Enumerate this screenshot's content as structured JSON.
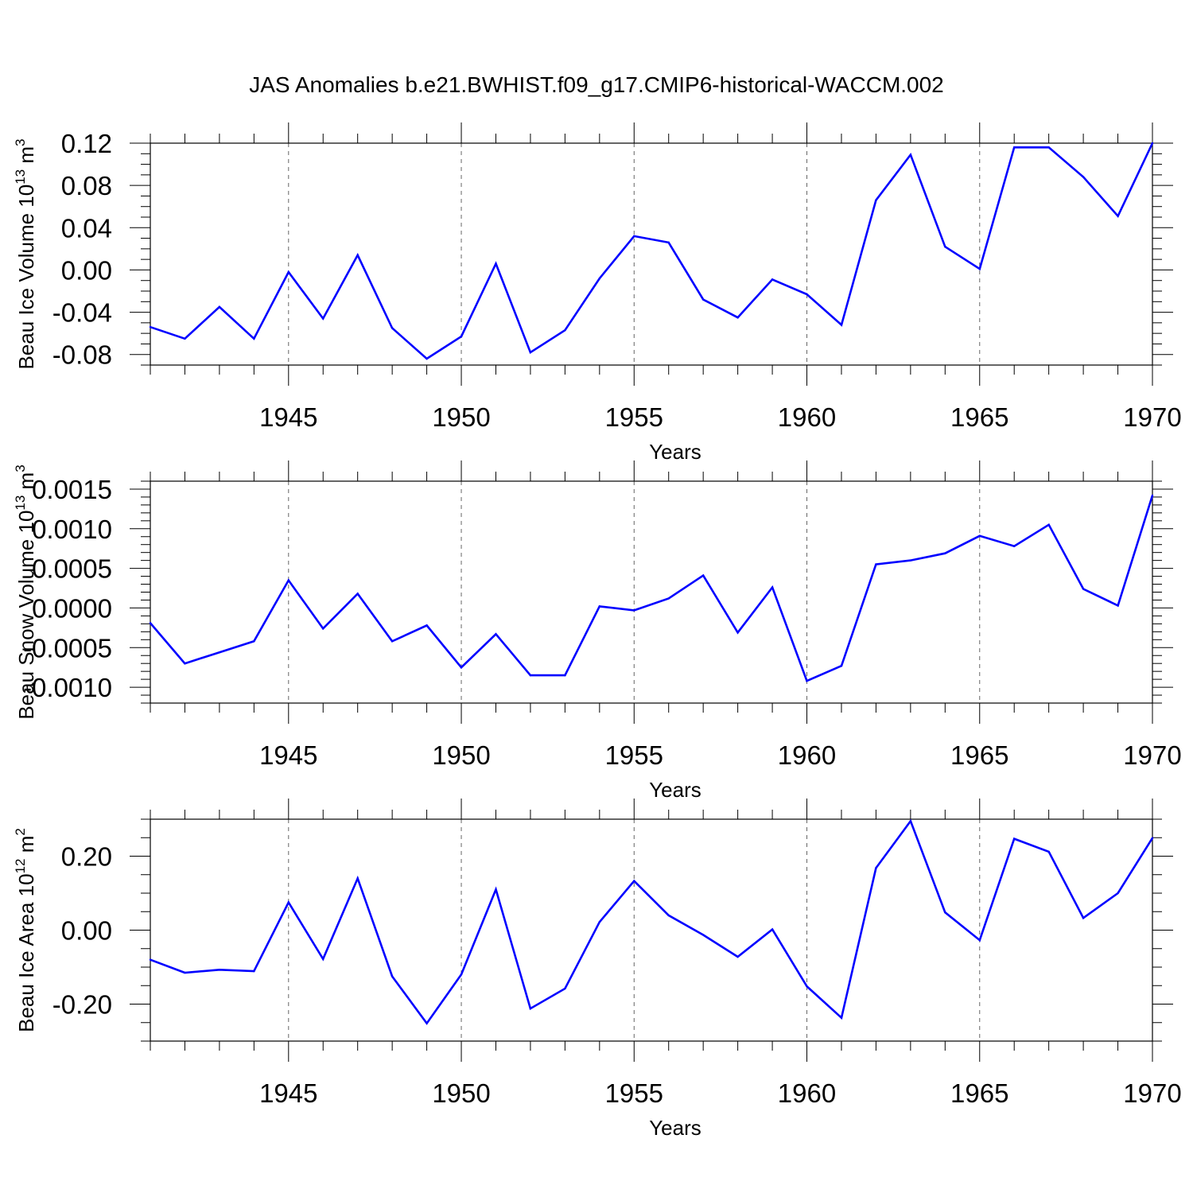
{
  "figure_title": "JAS Anomalies b.e21.BWHIST.f09_g17.CMIP6-historical-WACCM.002",
  "colors": {
    "line": "#0000ff",
    "axis": "#000000",
    "grid": "#666666"
  },
  "chart_data": [
    {
      "type": "line",
      "xlabel": "Years",
      "ylabel": {
        "main": "Beau Ice Volume 10",
        "exp": "13",
        "unit": " m",
        "unit_exp": "3"
      },
      "xlim": [
        1941,
        1970
      ],
      "ylim": [
        -0.09,
        0.12
      ],
      "xticks": [
        1945,
        1950,
        1955,
        1960,
        1965,
        1970
      ],
      "xtick_labels": [
        "1945",
        "1950",
        "1955",
        "1960",
        "1965",
        "1970"
      ],
      "yticks": [
        -0.08,
        -0.04,
        0.0,
        0.04,
        0.08,
        0.12
      ],
      "ytick_labels": [
        "-0.08",
        "-0.04",
        "0.00",
        "0.04",
        "0.08",
        "0.12"
      ],
      "yminor": 0.01,
      "grid": "vertical dashed at labeled years",
      "x": [
        1941,
        1942,
        1943,
        1944,
        1945,
        1946,
        1947,
        1948,
        1949,
        1950,
        1951,
        1952,
        1953,
        1954,
        1955,
        1956,
        1957,
        1958,
        1959,
        1960,
        1961,
        1962,
        1963,
        1964,
        1965,
        1966,
        1967,
        1968,
        1969,
        1970
      ],
      "y": [
        -0.054,
        -0.065,
        -0.035,
        -0.065,
        -0.002,
        -0.046,
        0.014,
        -0.055,
        -0.084,
        -0.063,
        0.006,
        -0.078,
        -0.057,
        -0.008,
        0.032,
        0.026,
        -0.028,
        -0.045,
        -0.009,
        -0.023,
        -0.052,
        0.066,
        0.109,
        0.022,
        0.001,
        0.116,
        0.116,
        0.088,
        0.051,
        0.12
      ]
    },
    {
      "type": "line",
      "xlabel": "Years",
      "ylabel": {
        "main": "Beau Snow Volume 10",
        "exp": "13",
        "unit": " m",
        "unit_exp": "3"
      },
      "xlim": [
        1941,
        1970
      ],
      "ylim": [
        -0.0012,
        0.0016
      ],
      "xticks": [
        1945,
        1950,
        1955,
        1960,
        1965,
        1970
      ],
      "xtick_labels": [
        "1945",
        "1950",
        "1955",
        "1960",
        "1965",
        "1970"
      ],
      "yticks": [
        -0.001,
        -0.0005,
        0.0,
        0.0005,
        0.001,
        0.0015
      ],
      "ytick_labels": [
        "-0.0010",
        "-0.0005",
        "0.0000",
        "0.0005",
        "0.0010",
        "0.0015"
      ],
      "yminor": 0.0001,
      "grid": "vertical dashed at labeled years",
      "x": [
        1941,
        1942,
        1943,
        1944,
        1945,
        1946,
        1947,
        1948,
        1949,
        1950,
        1951,
        1952,
        1953,
        1954,
        1955,
        1956,
        1957,
        1958,
        1959,
        1960,
        1961,
        1962,
        1963,
        1964,
        1965,
        1966,
        1967,
        1968,
        1969,
        1970
      ],
      "y": [
        -0.00019,
        -0.0007,
        -0.00056,
        -0.00042,
        0.00035,
        -0.00026,
        0.00018,
        -0.00042,
        -0.00022,
        -0.00075,
        -0.00033,
        -0.00085,
        -0.00085,
        2e-05,
        -3e-05,
        0.00012,
        0.00041,
        -0.00031,
        0.00026,
        -0.00092,
        -0.00073,
        0.00055,
        0.0006,
        0.00069,
        0.00091,
        0.00078,
        0.00105,
        0.00024,
        3e-05,
        0.00142
      ]
    },
    {
      "type": "line",
      "xlabel": "Years",
      "ylabel": {
        "main": "Beau Ice Area 10",
        "exp": "12",
        "unit": " m",
        "unit_exp": "2"
      },
      "xlim": [
        1941,
        1970
      ],
      "ylim": [
        -0.3,
        0.3
      ],
      "xticks": [
        1945,
        1950,
        1955,
        1960,
        1965,
        1970
      ],
      "xtick_labels": [
        "1945",
        "1950",
        "1955",
        "1960",
        "1965",
        "1970"
      ],
      "yticks": [
        -0.2,
        0.0,
        0.2
      ],
      "ytick_labels": [
        "-0.20",
        "0.00",
        "0.20"
      ],
      "yminor": 0.05,
      "grid": "vertical dashed at labeled years",
      "x": [
        1941,
        1942,
        1943,
        1944,
        1945,
        1946,
        1947,
        1948,
        1949,
        1950,
        1951,
        1952,
        1953,
        1954,
        1955,
        1956,
        1957,
        1958,
        1959,
        1960,
        1961,
        1962,
        1963,
        1964,
        1965,
        1966,
        1967,
        1968,
        1969,
        1970
      ],
      "y": [
        -0.08,
        -0.115,
        -0.107,
        -0.111,
        0.075,
        -0.078,
        0.14,
        -0.125,
        -0.252,
        -0.12,
        0.11,
        -0.212,
        -0.158,
        0.022,
        0.133,
        0.04,
        -0.013,
        -0.072,
        0.002,
        -0.152,
        -0.237,
        0.168,
        0.295,
        0.048,
        -0.027,
        0.247,
        0.212,
        0.033,
        0.1,
        0.249
      ]
    }
  ]
}
